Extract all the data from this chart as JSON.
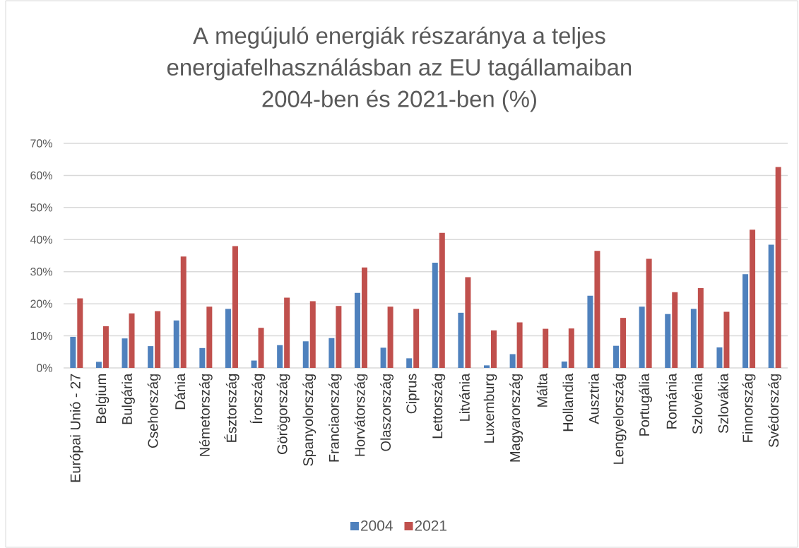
{
  "chart_data": {
    "type": "bar",
    "title": "A megújuló energiák részaránya a teljes energiafelhasználásban az EU tagállamaiban 2004-ben és 2021-ben (%)",
    "categories": [
      "Európai Unió - 27",
      "Belgium",
      "Bulgária",
      "Csehország",
      "Dánia",
      "Németország",
      "Észtország",
      "Írország",
      "Görögország",
      "Spanyolország",
      "Franciaország",
      "Horvátország",
      "Olaszország",
      "Ciprus",
      "Lettország",
      "Litvánia",
      "Luxemburg",
      "Magyarország",
      "Málta",
      "Hollandia",
      "Ausztria",
      "Lengyelország",
      "Portugália",
      "Románia",
      "Szlovénia",
      "Szlovákia",
      "Finnország",
      "Svédország"
    ],
    "series": [
      {
        "name": "2004",
        "color": "#4f81bd",
        "values": [
          9.7,
          1.9,
          9.2,
          6.8,
          14.8,
          6.2,
          18.4,
          2.3,
          7.1,
          8.3,
          9.3,
          23.4,
          6.3,
          3.0,
          32.8,
          17.2,
          0.8,
          4.3,
          null,
          2.0,
          22.5,
          6.9,
          19.1,
          16.8,
          18.4,
          6.4,
          29.2,
          38.4
        ]
      },
      {
        "name": "2021",
        "color": "#c0504d",
        "values": [
          21.7,
          13.0,
          17.0,
          17.7,
          34.7,
          19.1,
          38.0,
          12.5,
          21.9,
          20.8,
          19.3,
          31.3,
          19.1,
          18.4,
          42.1,
          28.3,
          11.7,
          14.2,
          12.2,
          12.3,
          36.5,
          15.6,
          34.0,
          23.6,
          24.9,
          17.5,
          43.1,
          62.6
        ]
      }
    ],
    "ylim": [
      0,
      70
    ],
    "yticks": [
      {
        "value": 0,
        "label": "0%"
      },
      {
        "value": 10,
        "label": "10%"
      },
      {
        "value": 20,
        "label": "20%"
      },
      {
        "value": 30,
        "label": "30%"
      },
      {
        "value": 40,
        "label": "40%"
      },
      {
        "value": 50,
        "label": "50%"
      },
      {
        "value": 60,
        "label": "60%"
      },
      {
        "value": 70,
        "label": "70%"
      }
    ],
    "grid": "y",
    "legend": "bottom"
  }
}
